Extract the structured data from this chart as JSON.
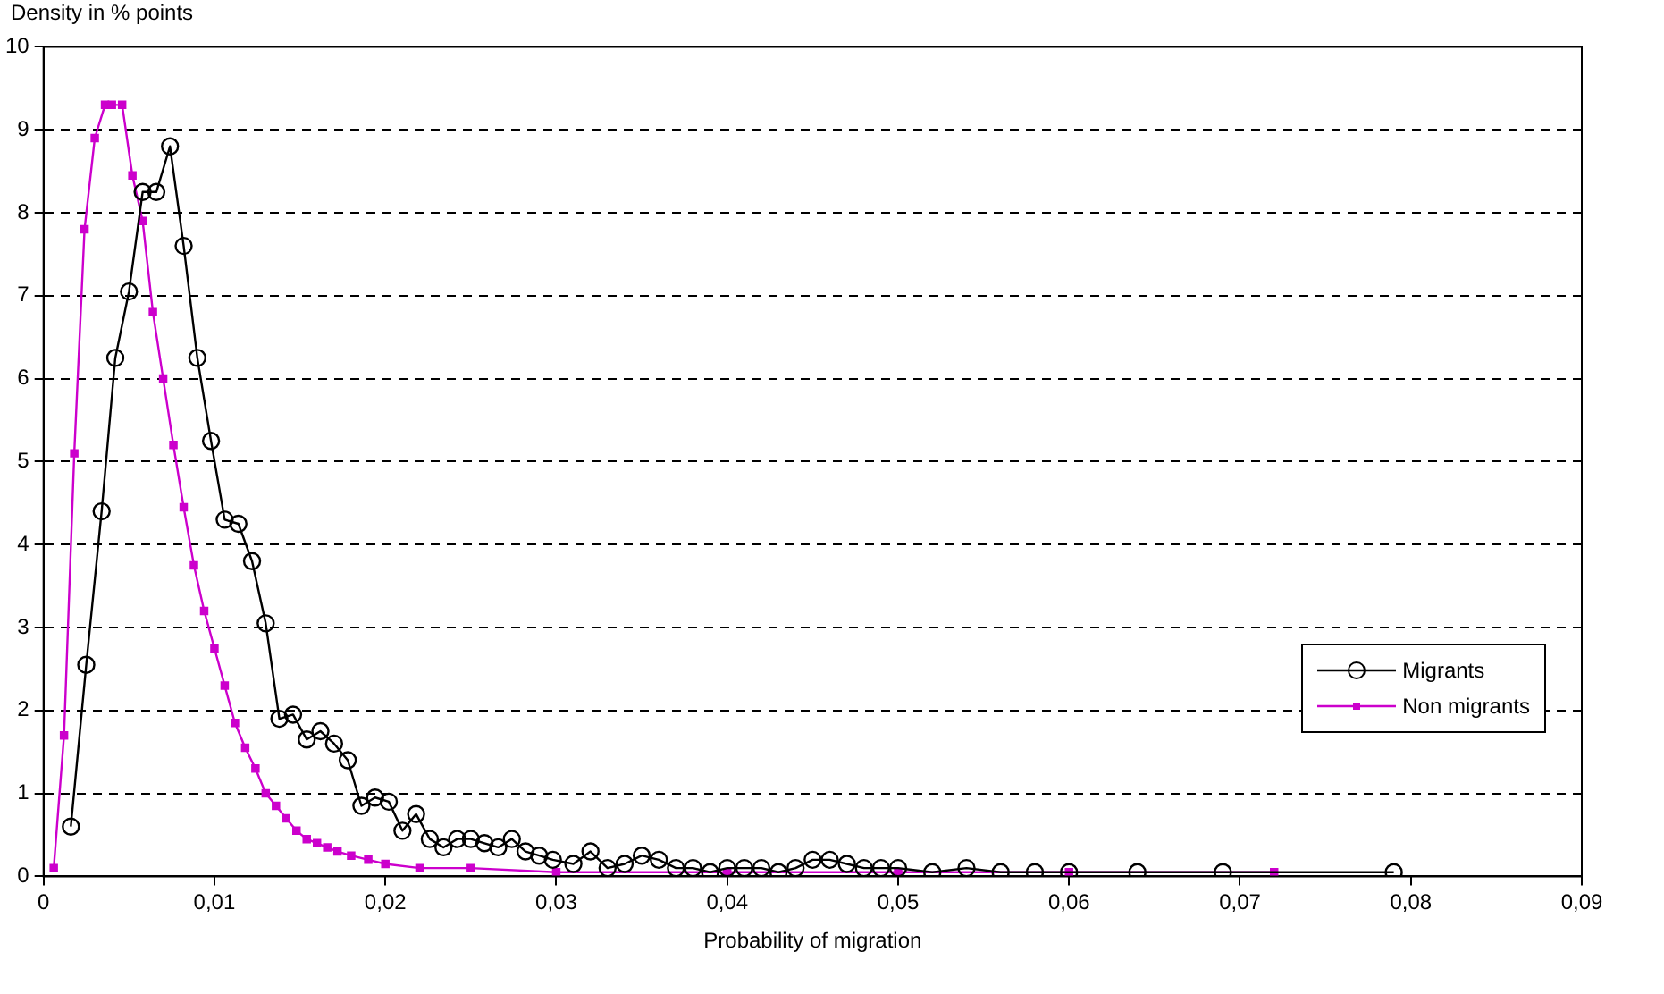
{
  "chart_data": {
    "type": "line",
    "ylabel": "Density in % points",
    "xlabel": "Probability of migration",
    "xlim": [
      0,
      0.09
    ],
    "ylim": [
      0,
      10
    ],
    "xticks": [
      0,
      {
        "value": 0.01,
        "label": "0,01"
      },
      {
        "value": 0.02,
        "label": "0,02"
      },
      {
        "value": 0.03,
        "label": "0,03"
      },
      {
        "value": 0.04,
        "label": "0,04"
      },
      {
        "value": 0.05,
        "label": "0,05"
      },
      {
        "value": 0.06,
        "label": "0,06"
      },
      {
        "value": 0.07,
        "label": "0,07"
      },
      {
        "value": 0.08,
        "label": "0,08"
      },
      {
        "value": 0.09,
        "label": "0,09"
      }
    ],
    "yticks": [
      0,
      1,
      2,
      3,
      4,
      5,
      6,
      7,
      8,
      9,
      10
    ],
    "grid": "y",
    "legend": "right",
    "line_style": "solid",
    "series": [
      {
        "name": "Migrants",
        "color": "#000000",
        "marker": "circle",
        "x": [
          0.0016,
          0.0025,
          0.0034,
          0.0042,
          0.005,
          0.0058,
          0.0066,
          0.0074,
          0.0082,
          0.009,
          0.0098,
          0.0106,
          0.0114,
          0.0122,
          0.013,
          0.0138,
          0.0146,
          0.0154,
          0.0162,
          0.017,
          0.0178,
          0.0186,
          0.0194,
          0.0202,
          0.021,
          0.0218,
          0.0226,
          0.0234,
          0.0242,
          0.025,
          0.0258,
          0.0266,
          0.0274,
          0.0282,
          0.029,
          0.0298,
          0.031,
          0.032,
          0.033,
          0.034,
          0.035,
          0.036,
          0.037,
          0.038,
          0.039,
          0.04,
          0.041,
          0.042,
          0.043,
          0.044,
          0.045,
          0.046,
          0.047,
          0.048,
          0.049,
          0.05,
          0.052,
          0.054,
          0.056,
          0.058,
          0.06,
          0.064,
          0.069,
          0.079
        ],
        "values": [
          0.6,
          2.55,
          4.4,
          6.25,
          7.05,
          8.25,
          8.25,
          8.8,
          7.6,
          6.25,
          5.25,
          4.3,
          4.25,
          3.8,
          3.05,
          1.9,
          1.95,
          1.65,
          1.75,
          1.6,
          1.4,
          0.85,
          0.95,
          0.9,
          0.55,
          0.75,
          0.45,
          0.35,
          0.45,
          0.45,
          0.4,
          0.35,
          0.45,
          0.3,
          0.25,
          0.2,
          0.15,
          0.3,
          0.1,
          0.15,
          0.25,
          0.2,
          0.1,
          0.1,
          0.05,
          0.1,
          0.1,
          0.1,
          0.05,
          0.1,
          0.2,
          0.2,
          0.15,
          0.1,
          0.1,
          0.1,
          0.05,
          0.1,
          0.05,
          0.05,
          0.05,
          0.05,
          0.05,
          0.05
        ]
      },
      {
        "name": "Non migrants",
        "color": "#cc00cc",
        "marker": "square",
        "x": [
          0.0006,
          0.0012,
          0.0018,
          0.0024,
          0.003,
          0.0036,
          0.004,
          0.0046,
          0.0052,
          0.0058,
          0.0064,
          0.007,
          0.0076,
          0.0082,
          0.0088,
          0.0094,
          0.01,
          0.0106,
          0.0112,
          0.0118,
          0.0124,
          0.013,
          0.0136,
          0.0142,
          0.0148,
          0.0154,
          0.016,
          0.0166,
          0.0172,
          0.018,
          0.019,
          0.02,
          0.022,
          0.025,
          0.03,
          0.04,
          0.05,
          0.06,
          0.072
        ],
        "values": [
          0.1,
          1.7,
          5.1,
          7.8,
          8.9,
          9.3,
          9.3,
          9.3,
          8.45,
          7.9,
          6.8,
          6,
          5.2,
          4.45,
          3.75,
          3.2,
          2.75,
          2.3,
          1.85,
          1.55,
          1.3,
          1,
          0.85,
          0.7,
          0.55,
          0.45,
          0.4,
          0.35,
          0.3,
          0.25,
          0.2,
          0.15,
          0.1,
          0.1,
          0.05,
          0.05,
          0.05,
          0.05,
          0.05
        ]
      }
    ]
  }
}
